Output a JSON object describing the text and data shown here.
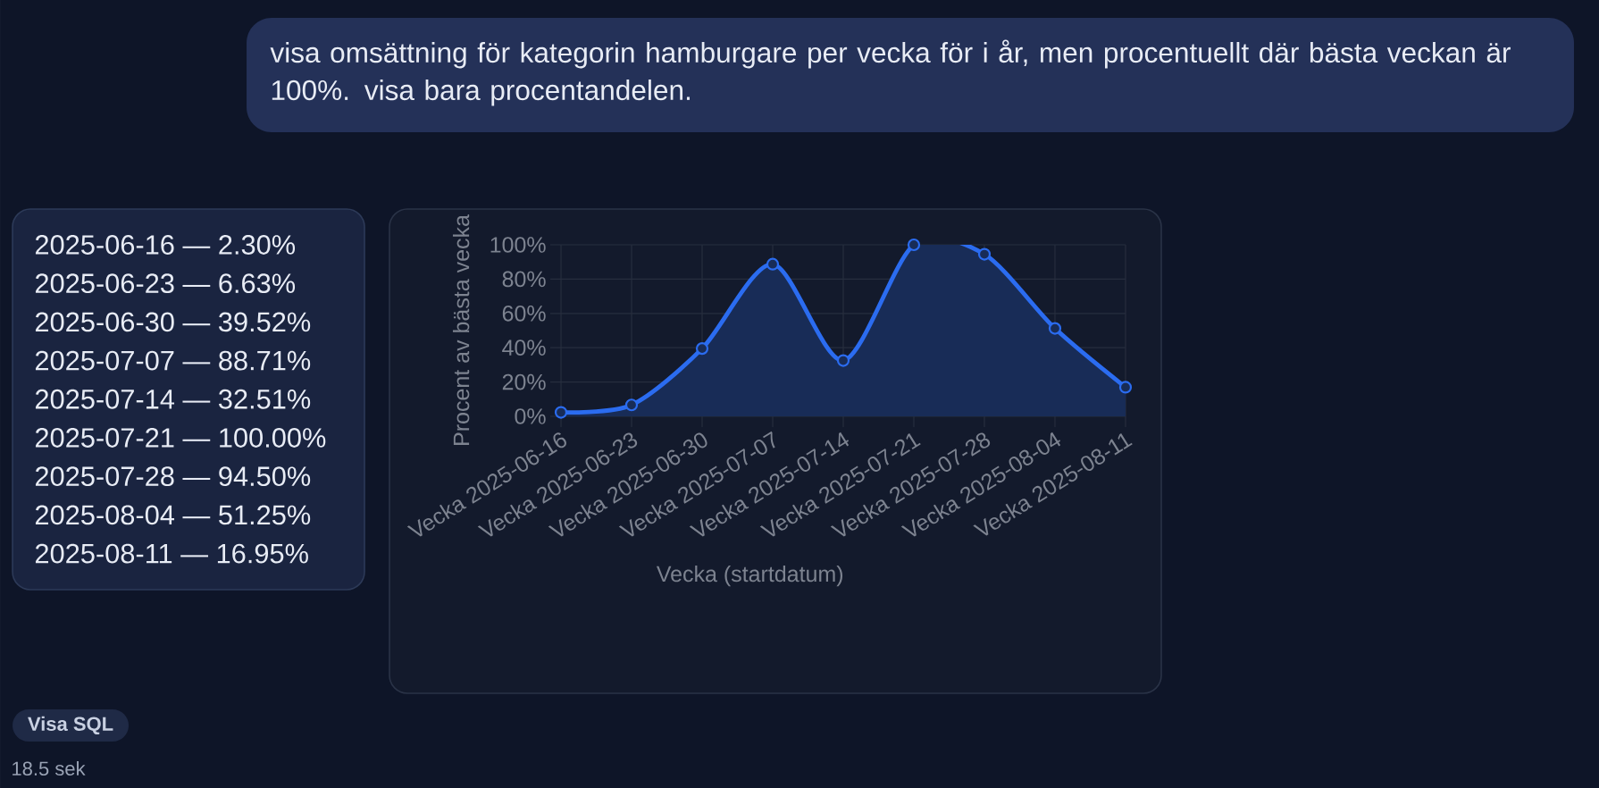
{
  "chart_data": {
    "type": "area",
    "xlabel": "Vecka (startdatum)",
    "ylabel": "Procent av bästa vecka",
    "categories": [
      "Vecka 2025-06-16",
      "Vecka 2025-06-23",
      "Vecka 2025-06-30",
      "Vecka 2025-07-07",
      "Vecka 2025-07-14",
      "Vecka 2025-07-21",
      "Vecka 2025-07-28",
      "Vecka 2025-08-04",
      "Vecka 2025-08-11"
    ],
    "values": [
      2.3,
      6.63,
      39.52,
      88.71,
      32.51,
      100.0,
      94.5,
      51.25,
      16.95
    ],
    "color": "#2b6cf0",
    "ylim": [
      0,
      100
    ],
    "yticks": [
      {
        "value": 0,
        "label": "0%"
      },
      {
        "value": 20,
        "label": "20%"
      },
      {
        "value": 40,
        "label": "40%"
      },
      {
        "value": 60,
        "label": "60%"
      },
      {
        "value": 80,
        "label": "80%"
      },
      {
        "value": 100,
        "label": "100%"
      }
    ],
    "grid": true,
    "marker": "circle",
    "annotations": [
      "visa omsättning för kategorin hamburgare per vecka för i år, men procentuellt där bästa veckan är 100%. visa bara procentandelen.",
      "2025-06-16 — 2.30%",
      "2025-06-23 — 6.63%",
      "2025-06-30 — 39.52%",
      "2025-07-07 — 88.71%",
      "2025-07-14 — 32.51%",
      "2025-07-21 — 100.00%",
      "2025-07-28 — 94.50%",
      "2025-08-04 — 51.25%",
      "2025-08-11 — 16.95%",
      "Visa SQL",
      "18.5 sek"
    ]
  }
}
